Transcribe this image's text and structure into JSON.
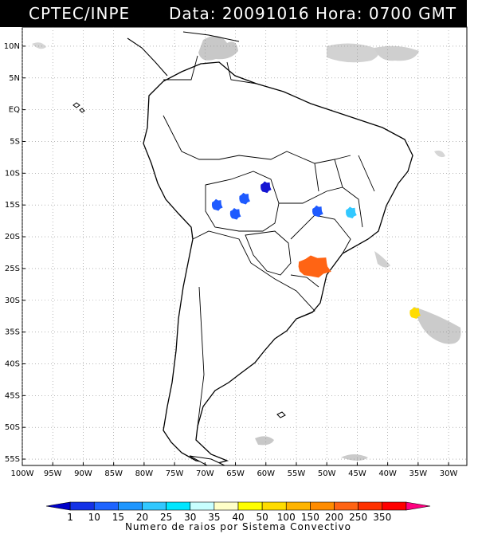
{
  "header": {
    "source": "CPTEC/INPE",
    "datetime": "Data: 20091016 Hora: 0700 GMT"
  },
  "map": {
    "lon_range": [
      -100,
      -27
    ],
    "lat_range": [
      -56,
      13
    ],
    "lat_labels": [
      "10N",
      "5N",
      "EQ",
      "5S",
      "10S",
      "15S",
      "20S",
      "25S",
      "30S",
      "35S",
      "40S",
      "45S",
      "50S",
      "55S"
    ],
    "lat_values": [
      10,
      5,
      0,
      -5,
      -10,
      -15,
      -20,
      -25,
      -30,
      -35,
      -40,
      -45,
      -50,
      -55
    ],
    "lon_labels": [
      "100W",
      "95W",
      "90W",
      "85W",
      "80W",
      "75W",
      "70W",
      "65W",
      "60W",
      "55W",
      "50W",
      "45W",
      "40W",
      "35W",
      "30W"
    ],
    "lon_values": [
      -100,
      -95,
      -90,
      -85,
      -80,
      -75,
      -70,
      -65,
      -60,
      -55,
      -50,
      -45,
      -40,
      -35,
      -30
    ],
    "grid": true,
    "colors": {
      "land_outline": "#000000",
      "cloud": "#c8c8c8",
      "grid": "#888888"
    },
    "systems": [
      {
        "name": "cell-central-brazil",
        "lon": -60.0,
        "lat": -12.2,
        "color": "#1414d2"
      },
      {
        "name": "cell-rondonia",
        "lon": -63.5,
        "lat": -14.0,
        "color": "#1e5aff"
      },
      {
        "name": "cell-bolivia-west",
        "lon": -68.0,
        "lat": -15.0,
        "color": "#1e5aff"
      },
      {
        "name": "cell-bolivia",
        "lon": -65.0,
        "lat": -16.4,
        "color": "#1e5aff"
      },
      {
        "name": "cell-goias",
        "lon": -51.5,
        "lat": -16.0,
        "color": "#1e5aff"
      },
      {
        "name": "cell-minas",
        "lon": -46.0,
        "lat": -16.2,
        "color": "#32c8ff"
      },
      {
        "name": "cell-parana",
        "lon": -52.0,
        "lat": -24.7,
        "color": "#ff6414"
      },
      {
        "name": "cell-atlantic",
        "lon": -35.5,
        "lat": -32.0,
        "color": "#ffdc00"
      }
    ]
  },
  "colorbar": {
    "labels": [
      "1",
      "10",
      "15",
      "20",
      "25",
      "30",
      "35",
      "40",
      "50",
      "100",
      "150",
      "200",
      "250",
      "350"
    ],
    "colors": [
      "#0000c8",
      "#1432e6",
      "#1e64ff",
      "#1e96ff",
      "#32c8ff",
      "#00e6ff",
      "#c8ffff",
      "#ffffc8",
      "#ffff00",
      "#ffdc00",
      "#ffb400",
      "#ff8c00",
      "#ff6414",
      "#ff3200",
      "#ff0000",
      "#ff0080"
    ],
    "title": "Numero de raios por Sistema Convectivo"
  }
}
